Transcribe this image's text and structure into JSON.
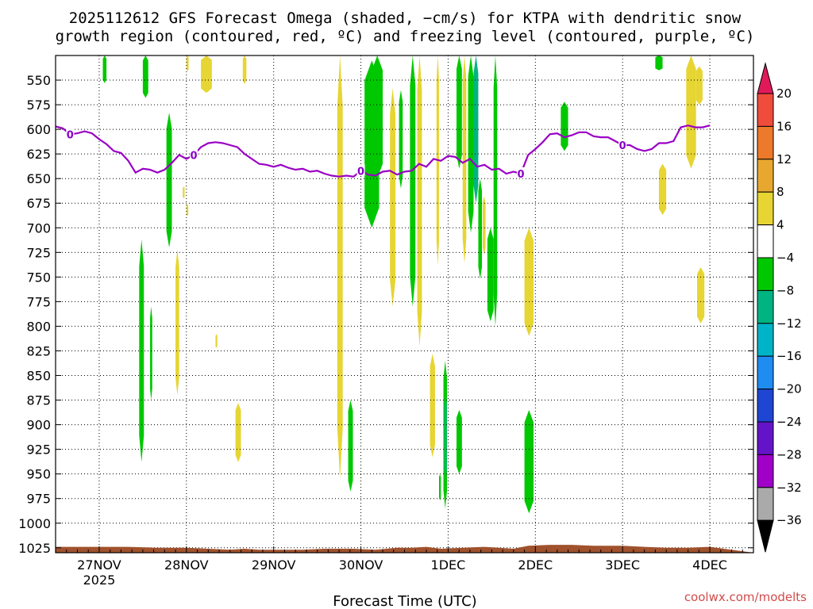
{
  "chart_data": {
    "type": "heatmap",
    "title_line1": "2025112612 GFS Forecast Omega (shaded, −cm/s) for KTPA with dendritic snow",
    "title_line2": "growth region (contoured, red, ºC) and freezing level (contoured, purple, ºC)",
    "xlabel": "Forecast Time (UTC)",
    "watermark": "coolwx.com/modelts",
    "x_range_hours": [
      -12,
      180
    ],
    "y_range_hPa": [
      525,
      1030
    ],
    "y_ticks": [
      550,
      575,
      600,
      625,
      650,
      675,
      700,
      725,
      750,
      775,
      800,
      825,
      850,
      875,
      900,
      925,
      950,
      975,
      1000,
      1025
    ],
    "x_ticks": [
      {
        "hour": 0,
        "label": "27NOV",
        "sub": "2025"
      },
      {
        "hour": 24,
        "label": "28NOV",
        "sub": ""
      },
      {
        "hour": 48,
        "label": "29NOV",
        "sub": ""
      },
      {
        "hour": 72,
        "label": "30NOV",
        "sub": ""
      },
      {
        "hour": 96,
        "label": "1DEC",
        "sub": ""
      },
      {
        "hour": 120,
        "label": "2DEC",
        "sub": ""
      },
      {
        "hour": 144,
        "label": "3DEC",
        "sub": ""
      },
      {
        "hour": 168,
        "label": "4DEC",
        "sub": ""
      }
    ],
    "grid": true,
    "colorbar": {
      "labels": [
        "20",
        "16",
        "12",
        "8",
        "4",
        "−4",
        "−8",
        "−12",
        "−16",
        "−20",
        "−24",
        "−28",
        "−32",
        "−36"
      ],
      "colors": [
        "#e01a5a",
        "#f04c3c",
        "#ec7a2a",
        "#e8a830",
        "#e6d532",
        "#ffffff",
        "#00c800",
        "#00b482",
        "#00b4c8",
        "#1e8cf0",
        "#1e46d2",
        "#6414c8",
        "#a000c8",
        "#aaaaaa",
        "#000000"
      ]
    },
    "freezing_level": {
      "label": "0",
      "color": "#9a00c4",
      "points": [
        [
          -12,
          597
        ],
        [
          -10,
          599
        ],
        [
          -8,
          605
        ],
        [
          -6,
          604
        ],
        [
          -4,
          602
        ],
        [
          -2,
          604
        ],
        [
          0,
          610
        ],
        [
          2,
          615
        ],
        [
          4,
          622
        ],
        [
          6,
          624
        ],
        [
          8,
          632
        ],
        [
          10,
          644
        ],
        [
          12,
          640
        ],
        [
          14,
          641
        ],
        [
          16,
          644
        ],
        [
          18,
          641
        ],
        [
          20,
          634
        ],
        [
          22,
          626
        ],
        [
          24,
          630
        ],
        [
          26,
          626
        ],
        [
          28,
          618
        ],
        [
          30,
          614
        ],
        [
          32,
          613
        ],
        [
          34,
          614
        ],
        [
          36,
          616
        ],
        [
          38,
          618
        ],
        [
          40,
          625
        ],
        [
          42,
          630
        ],
        [
          44,
          635
        ],
        [
          46,
          636
        ],
        [
          48,
          638
        ],
        [
          50,
          636
        ],
        [
          52,
          639
        ],
        [
          54,
          641
        ],
        [
          56,
          640
        ],
        [
          58,
          643
        ],
        [
          60,
          642
        ],
        [
          62,
          645
        ],
        [
          64,
          647
        ],
        [
          66,
          648
        ],
        [
          68,
          647
        ],
        [
          70,
          648
        ],
        [
          72,
          642
        ],
        [
          74,
          646
        ],
        [
          76,
          647
        ],
        [
          78,
          643
        ],
        [
          80,
          642
        ],
        [
          82,
          646
        ],
        [
          84,
          643
        ],
        [
          86,
          642
        ],
        [
          88,
          635
        ],
        [
          90,
          638
        ],
        [
          92,
          630
        ],
        [
          94,
          632
        ],
        [
          96,
          627
        ],
        [
          98,
          628
        ],
        [
          100,
          634
        ],
        [
          102,
          630
        ],
        [
          104,
          638
        ],
        [
          106,
          636
        ],
        [
          108,
          641
        ],
        [
          110,
          640
        ],
        [
          112,
          645
        ],
        [
          114,
          643
        ],
        [
          116,
          645
        ],
        [
          118,
          626
        ],
        [
          120,
          620
        ],
        [
          122,
          613
        ],
        [
          124,
          605
        ],
        [
          126,
          604
        ],
        [
          128,
          608
        ],
        [
          130,
          606
        ],
        [
          132,
          603
        ],
        [
          134,
          603
        ],
        [
          136,
          607
        ],
        [
          138,
          608
        ],
        [
          140,
          608
        ],
        [
          142,
          612
        ],
        [
          144,
          616
        ],
        [
          146,
          616
        ],
        [
          148,
          620
        ],
        [
          150,
          622
        ],
        [
          152,
          620
        ],
        [
          154,
          614
        ],
        [
          156,
          614
        ],
        [
          158,
          612
        ],
        [
          160,
          598
        ],
        [
          162,
          596
        ],
        [
          164,
          598
        ],
        [
          166,
          598
        ],
        [
          168,
          596
        ]
      ]
    },
    "omega_shading": [
      {
        "c": "#00c800",
        "x0": 1,
        "x1": 2,
        "p0": 525,
        "p1": 553
      },
      {
        "c": "#00c800",
        "x0": 12,
        "x1": 13.5,
        "p0": 525,
        "p1": 568
      },
      {
        "c": "#e6d532",
        "x0": 24,
        "x1": 24.6,
        "p0": 525,
        "p1": 541
      },
      {
        "c": "#e6d532",
        "x0": 28,
        "x1": 31,
        "p0": 525,
        "p1": 563
      },
      {
        "c": "#e6d532",
        "x0": 39.5,
        "x1": 40.5,
        "p0": 525,
        "p1": 554
      },
      {
        "c": "#00c800",
        "x0": 18.5,
        "x1": 20,
        "p0": 583,
        "p1": 720
      },
      {
        "c": "#00c800",
        "x0": 11,
        "x1": 12.3,
        "p0": 712,
        "p1": 938
      },
      {
        "c": "#00c800",
        "x0": 14,
        "x1": 14.6,
        "p0": 780,
        "p1": 875
      },
      {
        "c": "#e6d532",
        "x0": 21,
        "x1": 22,
        "p0": 722,
        "p1": 870
      },
      {
        "c": "#e6d532",
        "x0": 23,
        "x1": 23.5,
        "p0": 658,
        "p1": 670
      },
      {
        "c": "#e6d532",
        "x0": 24,
        "x1": 24.5,
        "p0": 676,
        "p1": 688
      },
      {
        "c": "#e6d532",
        "x0": 32,
        "x1": 32.5,
        "p0": 808,
        "p1": 822
      },
      {
        "c": "#e6d532",
        "x0": 37.5,
        "x1": 39,
        "p0": 878,
        "p1": 938
      },
      {
        "c": "#e6d532",
        "x0": 65.5,
        "x1": 67,
        "p0": 525,
        "p1": 955
      },
      {
        "c": "#00c800",
        "x0": 68.5,
        "x1": 69.8,
        "p0": 875,
        "p1": 968
      },
      {
        "c": "#00c800",
        "x0": 73,
        "x1": 77,
        "p0": 530,
        "p1": 700
      },
      {
        "c": "#00c800",
        "x0": 75,
        "x1": 78,
        "p0": 525,
        "p1": 650
      },
      {
        "c": "#e6d532",
        "x0": 80,
        "x1": 81.5,
        "p0": 558,
        "p1": 780
      },
      {
        "c": "#00c800",
        "x0": 82.5,
        "x1": 83.5,
        "p0": 560,
        "p1": 660
      },
      {
        "c": "#00c800",
        "x0": 85.5,
        "x1": 87,
        "p0": 525,
        "p1": 780
      },
      {
        "c": "#e6d532",
        "x0": 87.5,
        "x1": 88.8,
        "p0": 525,
        "p1": 820
      },
      {
        "c": "#e6d532",
        "x0": 91,
        "x1": 92.4,
        "p0": 828,
        "p1": 933
      },
      {
        "c": "#e6d532",
        "x0": 92.8,
        "x1": 93.5,
        "p0": 525,
        "p1": 738
      },
      {
        "c": "#00c800",
        "x0": 94.7,
        "x1": 95.7,
        "p0": 835,
        "p1": 985
      },
      {
        "c": "#00b482",
        "x0": 95,
        "x1": 95.6,
        "p0": 870,
        "p1": 955
      },
      {
        "c": "#00c800",
        "x0": 93.5,
        "x1": 94,
        "p0": 950,
        "p1": 977
      },
      {
        "c": "#00c800",
        "x0": 98.3,
        "x1": 99.8,
        "p0": 525,
        "p1": 640
      },
      {
        "c": "#00c800",
        "x0": 98.3,
        "x1": 99.8,
        "p0": 885,
        "p1": 950
      },
      {
        "c": "#e6d532",
        "x0": 100,
        "x1": 101,
        "p0": 525,
        "p1": 736
      },
      {
        "c": "#00c800",
        "x0": 101.5,
        "x1": 103,
        "p0": 525,
        "p1": 705
      },
      {
        "c": "#00b482",
        "x0": 103,
        "x1": 104.3,
        "p0": 525,
        "p1": 675
      },
      {
        "c": "#00c800",
        "x0": 104.3,
        "x1": 105.3,
        "p0": 650,
        "p1": 752
      },
      {
        "c": "#e6d532",
        "x0": 105.5,
        "x1": 106.3,
        "p0": 668,
        "p1": 727
      },
      {
        "c": "#00c800",
        "x0": 106.8,
        "x1": 108.5,
        "p0": 700,
        "p1": 795
      },
      {
        "c": "#00c800",
        "x0": 108.5,
        "x1": 109.5,
        "p0": 525,
        "p1": 800
      },
      {
        "c": "#e6d532",
        "x0": 117,
        "x1": 119.5,
        "p0": 700,
        "p1": 810
      },
      {
        "c": "#00c800",
        "x0": 117,
        "x1": 119.5,
        "p0": 885,
        "p1": 990
      },
      {
        "c": "#00c800",
        "x0": 127,
        "x1": 129,
        "p0": 572,
        "p1": 622
      },
      {
        "c": "#00c800",
        "x0": 153,
        "x1": 155,
        "p0": 525,
        "p1": 540
      },
      {
        "c": "#e6d532",
        "x0": 154,
        "x1": 156,
        "p0": 635,
        "p1": 687
      },
      {
        "c": "#e6d532",
        "x0": 161.5,
        "x1": 164.2,
        "p0": 525,
        "p1": 640
      },
      {
        "c": "#e6d532",
        "x0": 164.2,
        "x1": 166,
        "p0": 536,
        "p1": 575
      },
      {
        "c": "#e6d532",
        "x0": 164.5,
        "x1": 166.5,
        "p0": 740,
        "p1": 797
      }
    ],
    "terrain": {
      "color": "#a0522d",
      "points": [
        [
          -12,
          1024
        ],
        [
          0,
          1024
        ],
        [
          8,
          1024
        ],
        [
          16,
          1025
        ],
        [
          24,
          1025
        ],
        [
          30,
          1026
        ],
        [
          36,
          1027
        ],
        [
          40,
          1026
        ],
        [
          44,
          1027
        ],
        [
          50,
          1027
        ],
        [
          56,
          1027
        ],
        [
          62,
          1026
        ],
        [
          70,
          1026
        ],
        [
          76,
          1027
        ],
        [
          82,
          1025
        ],
        [
          86,
          1025
        ],
        [
          90,
          1024
        ],
        [
          94,
          1026
        ],
        [
          100,
          1025
        ],
        [
          106,
          1024
        ],
        [
          110,
          1025
        ],
        [
          114,
          1026
        ],
        [
          118,
          1023
        ],
        [
          124,
          1022
        ],
        [
          130,
          1022
        ],
        [
          136,
          1023
        ],
        [
          144,
          1023
        ],
        [
          150,
          1024
        ],
        [
          156,
          1025
        ],
        [
          162,
          1025
        ],
        [
          168,
          1024
        ]
      ]
    }
  }
}
